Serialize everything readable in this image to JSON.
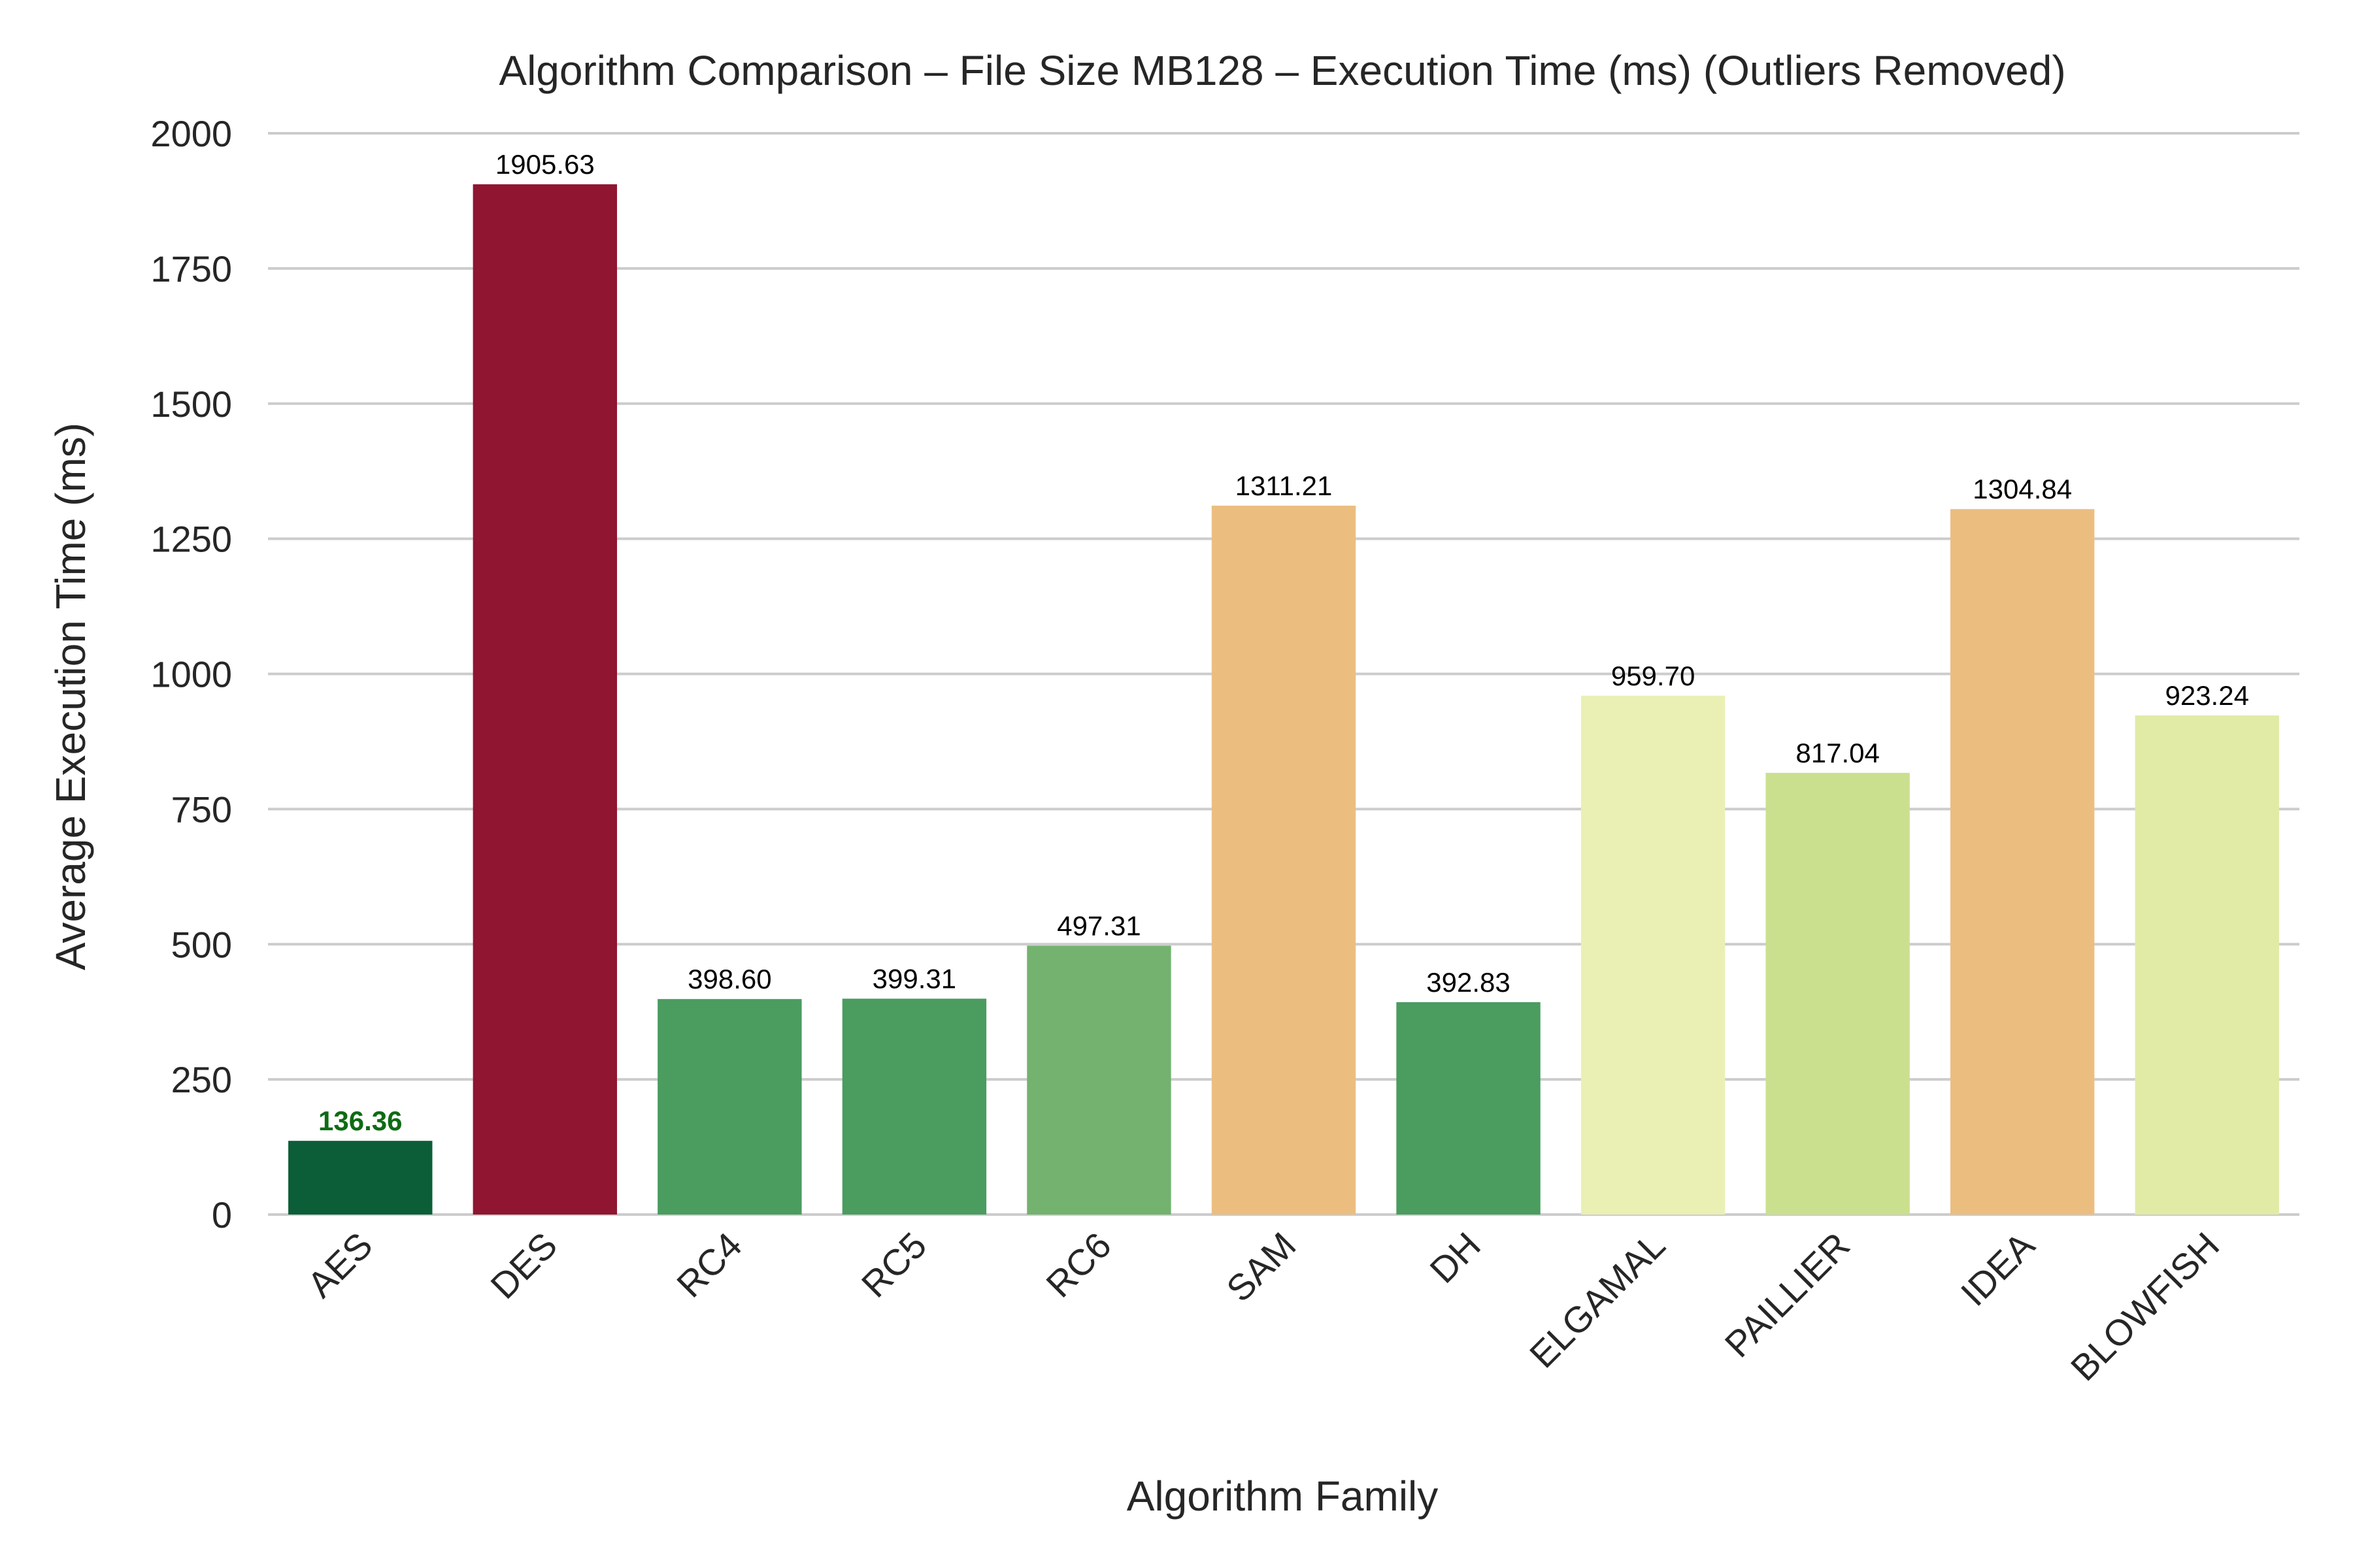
{
  "chart_data": {
    "type": "bar",
    "title": "Algorithm Comparison – File Size MB128 – Execution Time (ms) (Outliers Removed)",
    "xlabel": "Algorithm Family",
    "ylabel": "Average Execution Time (ms)",
    "categories": [
      "AES",
      "DES",
      "RC4",
      "RC5",
      "RC6",
      "SAM",
      "DH",
      "ELGAMAL",
      "PAILLIER",
      "IDEA",
      "BLOWFISH"
    ],
    "values": [
      136.36,
      1905.63,
      398.6,
      399.31,
      497.31,
      1311.21,
      392.83,
      959.7,
      817.04,
      1304.84,
      923.24
    ],
    "value_labels": [
      "136.36",
      "1905.63",
      "398.60",
      "399.31",
      "497.31",
      "1311.21",
      "392.83",
      "959.70",
      "817.04",
      "1304.84",
      "923.24"
    ],
    "colors": [
      "#0b5e38",
      "#8f1530",
      "#4a9c5f",
      "#4a9c5f",
      "#73b26f",
      "#ebbe80",
      "#4a9c5f",
      "#eaf0b4",
      "#cbe08e",
      "#ebbe80",
      "#e1eba6"
    ],
    "highlight": {
      "index": 0,
      "color": "#0e6b14"
    },
    "ylim": [
      0,
      2000
    ],
    "yticks": [
      0,
      250,
      500,
      750,
      1000,
      1250,
      1500,
      1750,
      2000
    ],
    "ytick_labels": [
      "0",
      "250",
      "500",
      "750",
      "1000",
      "1250",
      "1500",
      "1750",
      "2000"
    ],
    "grid": true,
    "grid_color": "#cccccc"
  }
}
